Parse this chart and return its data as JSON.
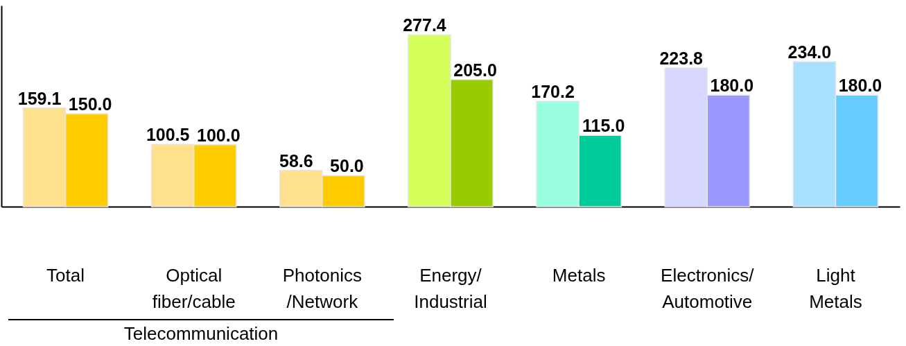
{
  "chart_data": {
    "type": "bar",
    "categories": [
      "Total",
      "Optical\nfiber/cable",
      "Photonics\n/Network",
      "Energy/\nIndustrial",
      "Metals",
      "Electronics/\nAutomotive",
      "Light\nMetals"
    ],
    "series": [
      {
        "colors": [
          "#ffe08c",
          "#ffe08c",
          "#ffe08c",
          "#d4ff5a",
          "#99ffe0",
          "#d6d6ff",
          "#a8e0ff"
        ],
        "values": [
          159.1,
          100.5,
          58.6,
          277.4,
          170.2,
          223.8,
          234.0
        ],
        "value_labels": [
          "159.1",
          "100.5",
          "58.6",
          "277.4",
          "170.2",
          "223.8",
          "234.0"
        ]
      },
      {
        "colors": [
          "#ffcc00",
          "#ffcc00",
          "#ffcc00",
          "#99cc00",
          "#00cc99",
          "#9999ff",
          "#66ccff"
        ],
        "values": [
          150.0,
          100.0,
          50.0,
          205.0,
          115.0,
          180.0,
          180.0
        ],
        "value_labels": [
          "150.0",
          "100.0",
          "50.0",
          "205.0",
          "115.0",
          "180.0",
          "180.0"
        ]
      }
    ],
    "tick_labels": "x",
    "grid": false,
    "annotations": [
      "Telecommunication"
    ]
  }
}
